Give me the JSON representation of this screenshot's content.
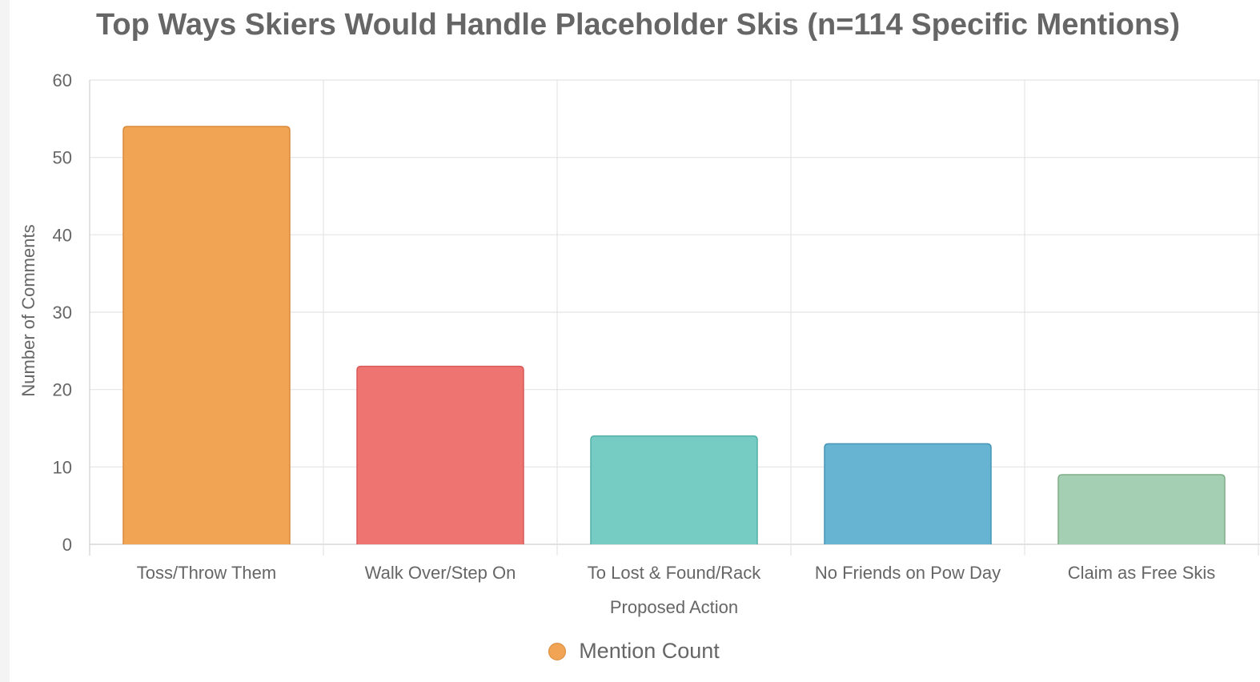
{
  "chart_data": {
    "type": "bar",
    "title": "Top Ways Skiers Would Handle Placeholder Skis (n=114 Specific Mentions)",
    "xlabel": "Proposed Action",
    "ylabel": "Number of Comments",
    "categories": [
      "Toss/Throw Them",
      "Walk Over/Step On",
      "To Lost & Found/Rack",
      "No Friends on Pow Day",
      "Claim as Free Skis"
    ],
    "series": [
      {
        "name": "Mention Count",
        "values": [
          54,
          23,
          14,
          13,
          9
        ]
      }
    ],
    "ylim": [
      0,
      60
    ],
    "yticks": [
      0,
      10,
      20,
      30,
      40,
      50,
      60
    ],
    "grid": true,
    "legend_position": "bottom",
    "bar_colors": [
      "#f0a454",
      "#ee7472",
      "#76cbc3",
      "#66b4d1",
      "#a4cfb3"
    ],
    "bar_border_colors": [
      "#d98a3a",
      "#d85a58",
      "#52b0a6",
      "#4795b5",
      "#7fae88"
    ]
  },
  "legend": {
    "label": "Mention Count",
    "color": "#f0a454"
  }
}
